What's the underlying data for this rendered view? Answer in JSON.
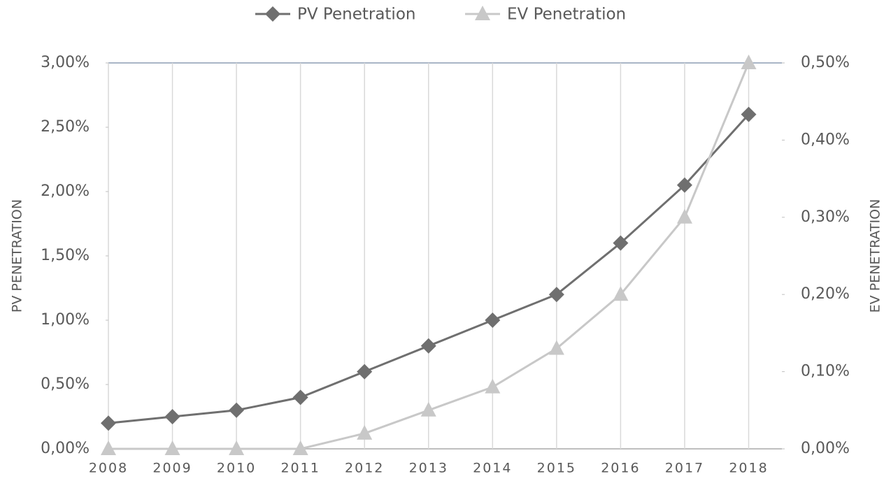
{
  "chart_data": {
    "type": "line",
    "categories": [
      "2008",
      "2009",
      "2010",
      "2011",
      "2012",
      "2013",
      "2014",
      "2015",
      "2016",
      "2017",
      "2018"
    ],
    "series": [
      {
        "name": "PV Penetration",
        "color": "#6f6f6f",
        "marker": "diamond",
        "values": [
          0.2,
          0.25,
          0.3,
          0.4,
          0.6,
          0.8,
          1.0,
          1.2,
          1.6,
          2.05,
          2.6
        ]
      },
      {
        "name": "EV Penetration",
        "color": "#c8c8c8",
        "marker": "triangle",
        "axis": "y2",
        "values": [
          0,
          0,
          0,
          0,
          0.02,
          0.05,
          0.08,
          0.13,
          0.2,
          0.3,
          0.5
        ]
      }
    ],
    "ylabel": "PV PENETRATION",
    "y2label": "EV PENETRATION",
    "ylim": [
      0,
      3
    ],
    "yticks": [
      {
        "value": 0,
        "label": "0,00%"
      },
      {
        "value": 0.5,
        "label": "0,50%"
      },
      {
        "value": 1,
        "label": "1,00%"
      },
      {
        "value": 1.5,
        "label": "1,50%"
      },
      {
        "value": 2,
        "label": "2,00%"
      },
      {
        "value": 2.5,
        "label": "2,50%"
      },
      {
        "value": 3,
        "label": "3,00%"
      }
    ],
    "y2lim": [
      0,
      0.5
    ],
    "y2ticks": [
      {
        "value": 0,
        "label": "0,00%"
      },
      {
        "value": 0.1,
        "label": "0,10%"
      },
      {
        "value": 0.2,
        "label": "0,20%"
      },
      {
        "value": 0.3,
        "label": "0,30%"
      },
      {
        "value": 0.4,
        "label": "0,40%"
      },
      {
        "value": 0.5,
        "label": "0,50%"
      }
    ],
    "grid": "x",
    "legend": "top"
  }
}
